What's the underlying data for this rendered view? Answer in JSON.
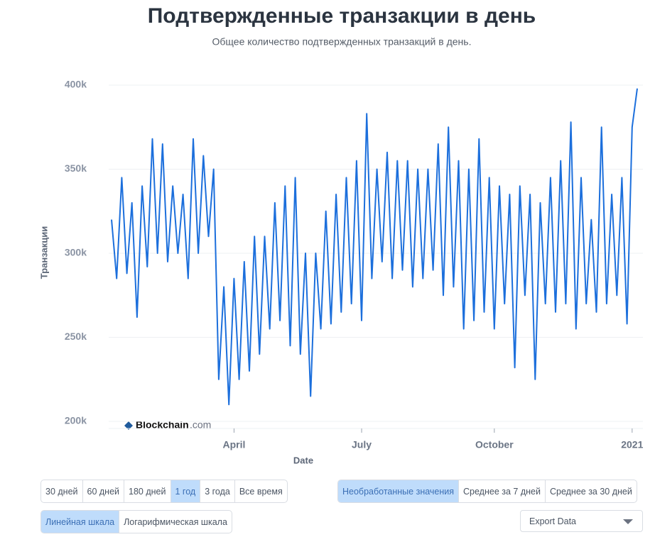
{
  "chart_data": {
    "type": "line",
    "title": "Подтвержденные транзакции в день",
    "subtitle": "Общее количество подтвержденных транзакций в день.",
    "y_label": "Транзакции",
    "x_label": "Date",
    "color": "#1c6fdc",
    "categories": [
      null,
      null,
      null,
      null,
      null,
      null,
      null,
      null,
      null,
      null,
      null,
      null,
      null,
      null,
      null,
      null,
      null,
      null,
      null,
      null,
      null,
      null,
      null,
      null,
      "April",
      null,
      null,
      null,
      null,
      null,
      null,
      null,
      null,
      null,
      null,
      null,
      null,
      null,
      null,
      null,
      null,
      null,
      null,
      null,
      null,
      null,
      null,
      null,
      null,
      "July",
      null,
      null,
      null,
      null,
      null,
      null,
      null,
      null,
      null,
      null,
      null,
      null,
      null,
      null,
      null,
      null,
      null,
      null,
      null,
      null,
      null,
      null,
      null,
      null,
      null,
      "October",
      null,
      null,
      null,
      null,
      null,
      null,
      null,
      null,
      null,
      null,
      null,
      null,
      null,
      null,
      null,
      null,
      null,
      null,
      null,
      null,
      null,
      null,
      null,
      null,
      null,
      null,
      "2021",
      null
    ],
    "values": [
      320000,
      285000,
      345000,
      288000,
      330000,
      262000,
      340000,
      292000,
      368000,
      300000,
      365000,
      295000,
      340000,
      300000,
      335000,
      285000,
      368000,
      300000,
      358000,
      310000,
      350000,
      225000,
      280000,
      210000,
      285000,
      225000,
      295000,
      230000,
      310000,
      240000,
      310000,
      255000,
      330000,
      260000,
      340000,
      245000,
      345000,
      240000,
      300000,
      215000,
      300000,
      255000,
      325000,
      258000,
      335000,
      265000,
      345000,
      270000,
      355000,
      260000,
      383000,
      285000,
      350000,
      295000,
      360000,
      285000,
      355000,
      290000,
      355000,
      280000,
      350000,
      285000,
      350000,
      290000,
      365000,
      275000,
      375000,
      280000,
      355000,
      255000,
      350000,
      260000,
      368000,
      265000,
      345000,
      255000,
      340000,
      270000,
      335000,
      232000,
      340000,
      275000,
      335000,
      225000,
      330000,
      270000,
      345000,
      265000,
      355000,
      270000,
      378000,
      255000,
      345000,
      270000,
      320000,
      265000,
      375000,
      270000,
      335000,
      275000,
      345000,
      258000,
      375000,
      398000
    ],
    "ylim": [
      200000,
      400000
    ],
    "yticks": [
      {
        "value": 200000,
        "label": "200k"
      },
      {
        "value": 250000,
        "label": "250k"
      },
      {
        "value": 300000,
        "label": "300k"
      },
      {
        "value": 350000,
        "label": "350k"
      },
      {
        "value": 400000,
        "label": "400k"
      }
    ],
    "grid": true
  },
  "watermark": {
    "brand": "Blockchain",
    "suffix": ".com"
  },
  "controls": {
    "ranges": [
      "30 дней",
      "60 дней",
      "180 дней",
      "1 год",
      "3 года",
      "Все время"
    ],
    "averages": [
      "Необработанные значения",
      "Среднее за 7 дней",
      "Среднее за 30 дней"
    ],
    "scales": [
      "Линейная шкала",
      "Логарифмическая шкала"
    ],
    "export": "Export Data"
  }
}
